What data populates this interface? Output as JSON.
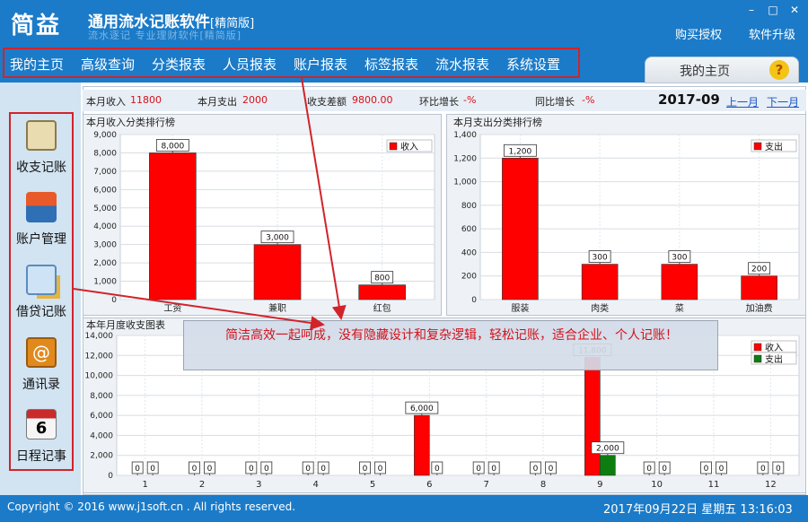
{
  "app": {
    "logo": "简益",
    "title": "通用流水记账软件",
    "edition": "[精简版]",
    "slogan": "流水逐记 专业理财软件[精简版]",
    "buy": "购买授权",
    "upgrade": "软件升级",
    "win_min": "–",
    "win_max": "□",
    "win_close": "✕"
  },
  "menu": [
    "我的主页",
    "高级查询",
    "分类报表",
    "人员报表",
    "账户报表",
    "标签报表",
    "流水报表",
    "系统设置"
  ],
  "home_tab": {
    "label": "我的主页",
    "help": "?"
  },
  "sidebar": [
    {
      "label": "收支记账",
      "icon": "notepad-pen-icon",
      "color": "#c9b37a"
    },
    {
      "label": "账户管理",
      "icon": "credit-card-icon",
      "color": "#2e6fb6"
    },
    {
      "label": "借贷记账",
      "icon": "calculator-coins-icon",
      "color": "#e7b43a"
    },
    {
      "label": "通讯录",
      "icon": "address-book-icon",
      "color": "#e08a1e"
    },
    {
      "label": "日程记事",
      "icon": "calendar-icon",
      "color": "#c92a2a"
    }
  ],
  "stats": {
    "income_label": "本月收入",
    "income": "11800",
    "expense_label": "本月支出",
    "expense": "2000",
    "diff_label": "收支差额",
    "diff": "9800.00",
    "mom_label": "环比增长",
    "mom": "-%",
    "yoy_label": "同比增长",
    "yoy": "-%",
    "month": "2017-09",
    "prev": "上一月",
    "next": "下一月"
  },
  "colors": {
    "income": "#ff0000",
    "expense": "#0e7d10",
    "accent": "#1b7bc8"
  },
  "chart_data": [
    {
      "type": "bar",
      "title": "本月收入分类排行榜",
      "categories": [
        "工资",
        "兼职",
        "红包"
      ],
      "series": [
        {
          "name": "收入",
          "values": [
            8000,
            3000,
            800
          ]
        }
      ],
      "ylim": [
        0,
        9000
      ],
      "yticks": [
        "0",
        "1,000",
        "2,000",
        "3,000",
        "4,000",
        "5,000",
        "6,000",
        "7,000",
        "8,000",
        "9,000"
      ],
      "data_labels": [
        "8,000",
        "3,000",
        "800"
      ],
      "legend": "top-right",
      "grid": true
    },
    {
      "type": "bar",
      "title": "本月支出分类排行榜",
      "categories": [
        "服装",
        "肉类",
        "菜",
        "加油费"
      ],
      "series": [
        {
          "name": "支出",
          "values": [
            1200,
            300,
            300,
            200
          ]
        }
      ],
      "ylim": [
        0,
        1400
      ],
      "yticks": [
        "0",
        "200",
        "400",
        "600",
        "800",
        "1,000",
        "1,200",
        "1,400"
      ],
      "data_labels": [
        "1,200",
        "300",
        "300",
        "200"
      ],
      "legend": "top-right",
      "grid": true
    },
    {
      "type": "bar",
      "title": "本年月度收支图表",
      "categories": [
        "1",
        "2",
        "3",
        "4",
        "5",
        "6",
        "7",
        "8",
        "9",
        "10",
        "11",
        "12"
      ],
      "series": [
        {
          "name": "收入",
          "values": [
            0,
            0,
            0,
            0,
            0,
            6000,
            0,
            0,
            11800,
            0,
            0,
            0
          ]
        },
        {
          "name": "支出",
          "values": [
            0,
            0,
            0,
            0,
            0,
            0,
            0,
            0,
            2000,
            0,
            0,
            0
          ]
        }
      ],
      "ylim": [
        0,
        14000
      ],
      "yticks": [
        "0",
        "2,000",
        "4,000",
        "6,000",
        "8,000",
        "10,000",
        "12,000",
        "14,000"
      ],
      "data_labels": [
        [
          "0",
          "0",
          "0",
          "0",
          "0",
          "6,000",
          "0",
          "0",
          "11,800",
          "0",
          "0",
          "0"
        ],
        [
          "0",
          "0",
          "0",
          "0",
          "0",
          "0",
          "0",
          "0",
          "2,000",
          "0",
          "0",
          "0"
        ]
      ],
      "legend": "top-right",
      "grid": true
    }
  ],
  "callout": "简洁高效一起呵成，没有隐藏设计和复杂逻辑，轻松记账，适合企业、个人记账！",
  "footer": {
    "copyright": "Copyright © 2016 www.j1soft.cn . All rights reserved.",
    "datetime": "2017年09月22日   星期五  13:16:03"
  }
}
